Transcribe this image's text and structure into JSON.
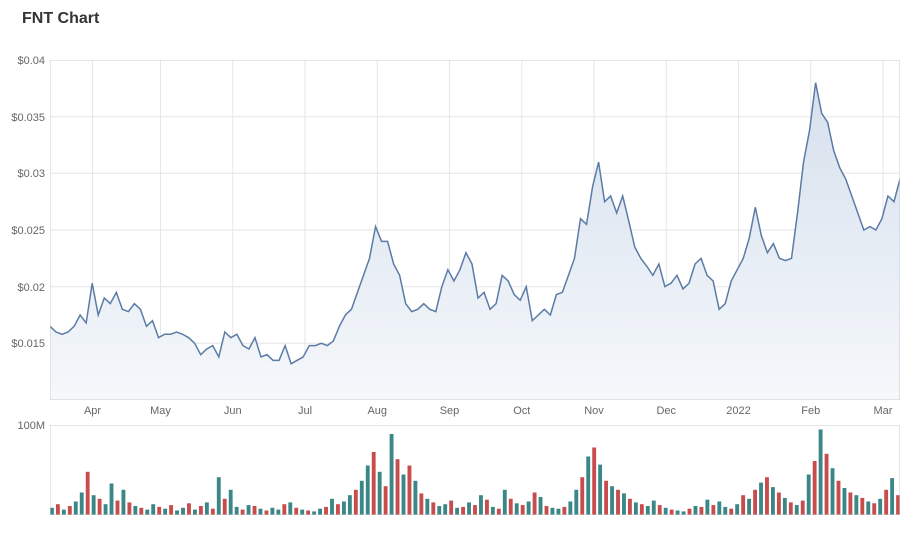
{
  "title": "FNT Chart",
  "price_chart": {
    "type": "area",
    "line_color": "#5b7ba6",
    "line_width": 1.5,
    "fill_top_color": "#d6e0ed",
    "fill_bottom_color": "#f5f8fb",
    "background_color": "#ffffff",
    "grid_color": "#e6e6e6",
    "border_color": "#cccccc",
    "y_axis": {
      "min": 0.01,
      "max": 0.04,
      "ticks": [
        0.015,
        0.02,
        0.025,
        0.03,
        0.035,
        0.04
      ],
      "tick_labels": [
        "$0.015",
        "$0.02",
        "$0.025",
        "$0.03",
        "$0.035",
        "$0.04"
      ],
      "label_fontsize": 11,
      "label_color": "#666666"
    },
    "x_axis": {
      "labels": [
        "Apr",
        "May",
        "Jun",
        "Jul",
        "Aug",
        "Sep",
        "Oct",
        "Nov",
        "Dec",
        "2022",
        "Feb",
        "Mar"
      ],
      "label_fontsize": 11,
      "label_color": "#666666",
      "positions": [
        0.05,
        0.13,
        0.215,
        0.3,
        0.385,
        0.47,
        0.555,
        0.64,
        0.725,
        0.81,
        0.895,
        0.98
      ]
    },
    "data": [
      0.0165,
      0.016,
      0.0158,
      0.016,
      0.0165,
      0.0175,
      0.0168,
      0.0203,
      0.0175,
      0.019,
      0.0185,
      0.0195,
      0.018,
      0.0178,
      0.0185,
      0.018,
      0.0165,
      0.017,
      0.0155,
      0.0158,
      0.0158,
      0.016,
      0.0158,
      0.0155,
      0.015,
      0.014,
      0.0145,
      0.0148,
      0.0138,
      0.016,
      0.0155,
      0.0158,
      0.0148,
      0.0145,
      0.0155,
      0.0138,
      0.014,
      0.0135,
      0.0135,
      0.0148,
      0.0132,
      0.0135,
      0.0138,
      0.0148,
      0.0148,
      0.015,
      0.0148,
      0.0152,
      0.0165,
      0.0175,
      0.018,
      0.0195,
      0.021,
      0.0225,
      0.0253,
      0.024,
      0.024,
      0.022,
      0.021,
      0.0185,
      0.0178,
      0.018,
      0.0185,
      0.018,
      0.0178,
      0.02,
      0.0215,
      0.0205,
      0.0215,
      0.023,
      0.022,
      0.019,
      0.0195,
      0.018,
      0.0185,
      0.021,
      0.0205,
      0.0193,
      0.0188,
      0.02,
      0.017,
      0.0175,
      0.018,
      0.0175,
      0.0193,
      0.0195,
      0.021,
      0.0225,
      0.026,
      0.0255,
      0.0288,
      0.031,
      0.0275,
      0.028,
      0.0265,
      0.028,
      0.0258,
      0.0235,
      0.0225,
      0.0218,
      0.021,
      0.022,
      0.02,
      0.0203,
      0.021,
      0.0198,
      0.0203,
      0.022,
      0.0225,
      0.021,
      0.0205,
      0.018,
      0.0185,
      0.0205,
      0.0215,
      0.0225,
      0.0243,
      0.027,
      0.0245,
      0.023,
      0.0238,
      0.0225,
      0.0223,
      0.0225,
      0.0265,
      0.031,
      0.0338,
      0.038,
      0.0353,
      0.0345,
      0.032,
      0.0305,
      0.0295,
      0.028,
      0.0265,
      0.025,
      0.0253,
      0.025,
      0.026,
      0.028,
      0.0275,
      0.0295
    ]
  },
  "volume_chart": {
    "type": "bar",
    "bar_colors": [
      "#3b8686",
      "#c94c4c"
    ],
    "background_color": "#ffffff",
    "grid_color": "#e6e6e6",
    "border_color": "#cccccc",
    "y_axis": {
      "max": 100000000,
      "tick": 100000000,
      "tick_label": "100M",
      "label_fontsize": 11,
      "label_color": "#666666"
    },
    "data": [
      [
        8,
        0
      ],
      [
        12,
        1
      ],
      [
        6,
        0
      ],
      [
        10,
        1
      ],
      [
        15,
        0
      ],
      [
        25,
        0
      ],
      [
        48,
        1
      ],
      [
        22,
        0
      ],
      [
        18,
        1
      ],
      [
        12,
        0
      ],
      [
        35,
        0
      ],
      [
        16,
        1
      ],
      [
        28,
        0
      ],
      [
        14,
        1
      ],
      [
        10,
        0
      ],
      [
        8,
        1
      ],
      [
        6,
        0
      ],
      [
        12,
        0
      ],
      [
        9,
        1
      ],
      [
        7,
        0
      ],
      [
        11,
        1
      ],
      [
        5,
        0
      ],
      [
        8,
        0
      ],
      [
        13,
        1
      ],
      [
        6,
        0
      ],
      [
        10,
        1
      ],
      [
        14,
        0
      ],
      [
        7,
        1
      ],
      [
        42,
        0
      ],
      [
        18,
        1
      ],
      [
        28,
        0
      ],
      [
        9,
        0
      ],
      [
        6,
        1
      ],
      [
        11,
        0
      ],
      [
        10,
        1
      ],
      [
        7,
        0
      ],
      [
        5,
        1
      ],
      [
        8,
        0
      ],
      [
        6,
        0
      ],
      [
        12,
        1
      ],
      [
        14,
        0
      ],
      [
        8,
        1
      ],
      [
        6,
        0
      ],
      [
        5,
        1
      ],
      [
        4,
        0
      ],
      [
        7,
        0
      ],
      [
        9,
        1
      ],
      [
        18,
        0
      ],
      [
        12,
        1
      ],
      [
        15,
        0
      ],
      [
        22,
        0
      ],
      [
        28,
        1
      ],
      [
        38,
        0
      ],
      [
        55,
        0
      ],
      [
        70,
        1
      ],
      [
        48,
        0
      ],
      [
        32,
        1
      ],
      [
        90,
        0
      ],
      [
        62,
        1
      ],
      [
        45,
        0
      ],
      [
        55,
        1
      ],
      [
        38,
        0
      ],
      [
        24,
        1
      ],
      [
        18,
        0
      ],
      [
        14,
        1
      ],
      [
        10,
        0
      ],
      [
        12,
        0
      ],
      [
        16,
        1
      ],
      [
        8,
        0
      ],
      [
        9,
        1
      ],
      [
        14,
        0
      ],
      [
        11,
        1
      ],
      [
        22,
        0
      ],
      [
        17,
        1
      ],
      [
        9,
        0
      ],
      [
        7,
        1
      ],
      [
        28,
        0
      ],
      [
        18,
        1
      ],
      [
        13,
        0
      ],
      [
        11,
        1
      ],
      [
        15,
        0
      ],
      [
        25,
        1
      ],
      [
        20,
        0
      ],
      [
        10,
        1
      ],
      [
        8,
        0
      ],
      [
        7,
        0
      ],
      [
        9,
        1
      ],
      [
        15,
        0
      ],
      [
        28,
        0
      ],
      [
        42,
        1
      ],
      [
        65,
        0
      ],
      [
        75,
        1
      ],
      [
        56,
        0
      ],
      [
        38,
        1
      ],
      [
        32,
        0
      ],
      [
        28,
        1
      ],
      [
        24,
        0
      ],
      [
        18,
        1
      ],
      [
        14,
        0
      ],
      [
        12,
        1
      ],
      [
        10,
        0
      ],
      [
        16,
        0
      ],
      [
        11,
        1
      ],
      [
        8,
        0
      ],
      [
        6,
        1
      ],
      [
        5,
        0
      ],
      [
        4,
        0
      ],
      [
        7,
        1
      ],
      [
        10,
        0
      ],
      [
        9,
        1
      ],
      [
        17,
        0
      ],
      [
        11,
        1
      ],
      [
        15,
        0
      ],
      [
        9,
        0
      ],
      [
        7,
        1
      ],
      [
        12,
        0
      ],
      [
        22,
        1
      ],
      [
        18,
        0
      ],
      [
        28,
        1
      ],
      [
        36,
        0
      ],
      [
        42,
        1
      ],
      [
        31,
        0
      ],
      [
        25,
        1
      ],
      [
        19,
        0
      ],
      [
        14,
        1
      ],
      [
        11,
        0
      ],
      [
        16,
        1
      ],
      [
        45,
        0
      ],
      [
        60,
        1
      ],
      [
        95,
        0
      ],
      [
        68,
        1
      ],
      [
        52,
        0
      ],
      [
        38,
        1
      ],
      [
        30,
        0
      ],
      [
        25,
        1
      ],
      [
        22,
        0
      ],
      [
        19,
        1
      ],
      [
        15,
        0
      ],
      [
        13,
        1
      ],
      [
        18,
        0
      ],
      [
        28,
        1
      ],
      [
        41,
        0
      ],
      [
        22,
        1
      ]
    ]
  }
}
